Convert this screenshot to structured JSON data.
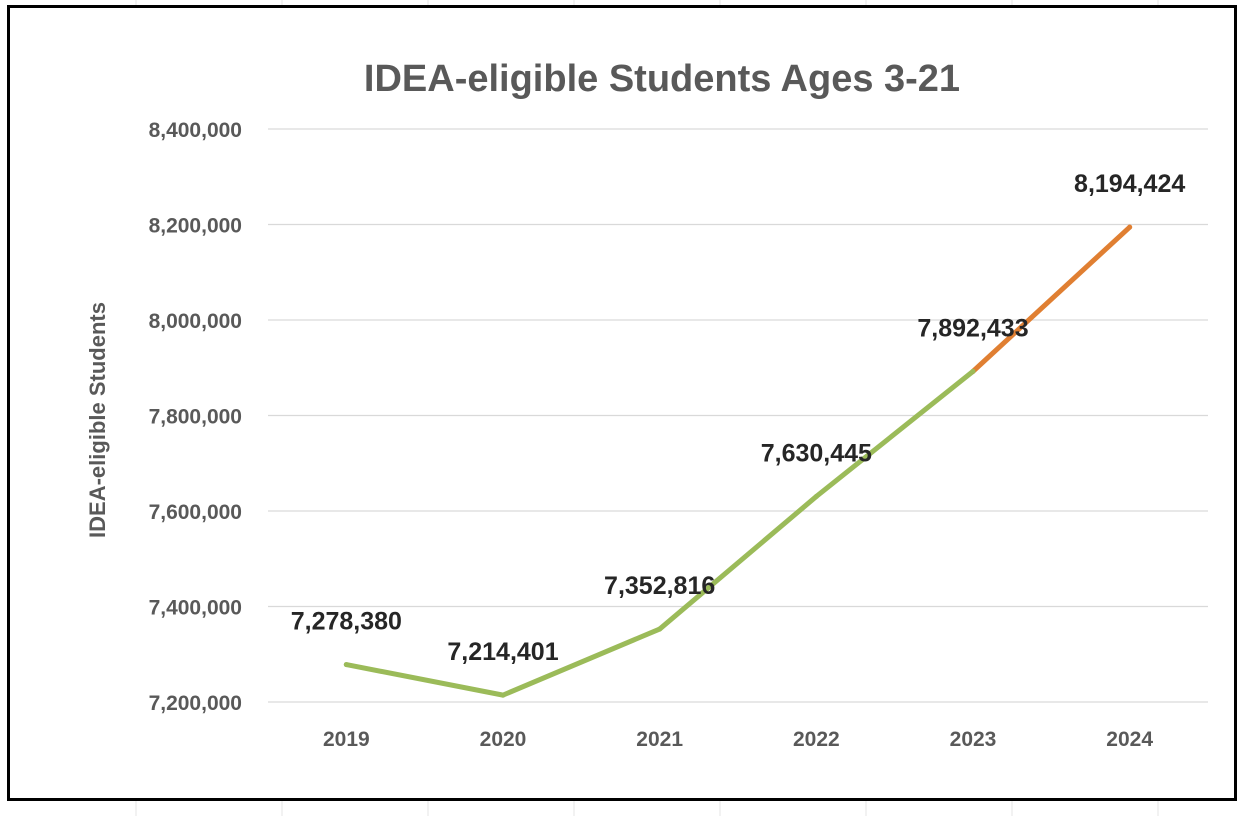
{
  "chart_data": {
    "type": "line",
    "title": "IDEA-eligible Students Ages 3-21",
    "ylabel": "IDEA-eligible Students",
    "xlabel": "",
    "categories": [
      "2019",
      "2020",
      "2021",
      "2022",
      "2023",
      "2024"
    ],
    "values": [
      7278380,
      7214401,
      7352816,
      7630445,
      7892433,
      8194424
    ],
    "data_labels": [
      "7,278,380",
      "7,214,401",
      "7,352,816",
      "7,630,445",
      "7,892,433",
      "8,194,424"
    ],
    "y_ticks": [
      7200000,
      7400000,
      7600000,
      7800000,
      8000000,
      8200000,
      8400000
    ],
    "y_tick_labels": [
      "7,200,000",
      "7,400,000",
      "7,600,000",
      "7,800,000",
      "8,000,000",
      "8,200,000",
      "8,400,000"
    ],
    "ylim": [
      7200000,
      8400000
    ],
    "grid": true,
    "legend": "none",
    "segment_colors": {
      "actual": "#9BBB59",
      "projected": "#E07F32"
    },
    "projected_from_category": "2023",
    "colors": {
      "title": "#595959",
      "axis_text": "#595959",
      "data_label": "#262626",
      "grid": "#D9D9D9",
      "frame": "#000000"
    }
  }
}
